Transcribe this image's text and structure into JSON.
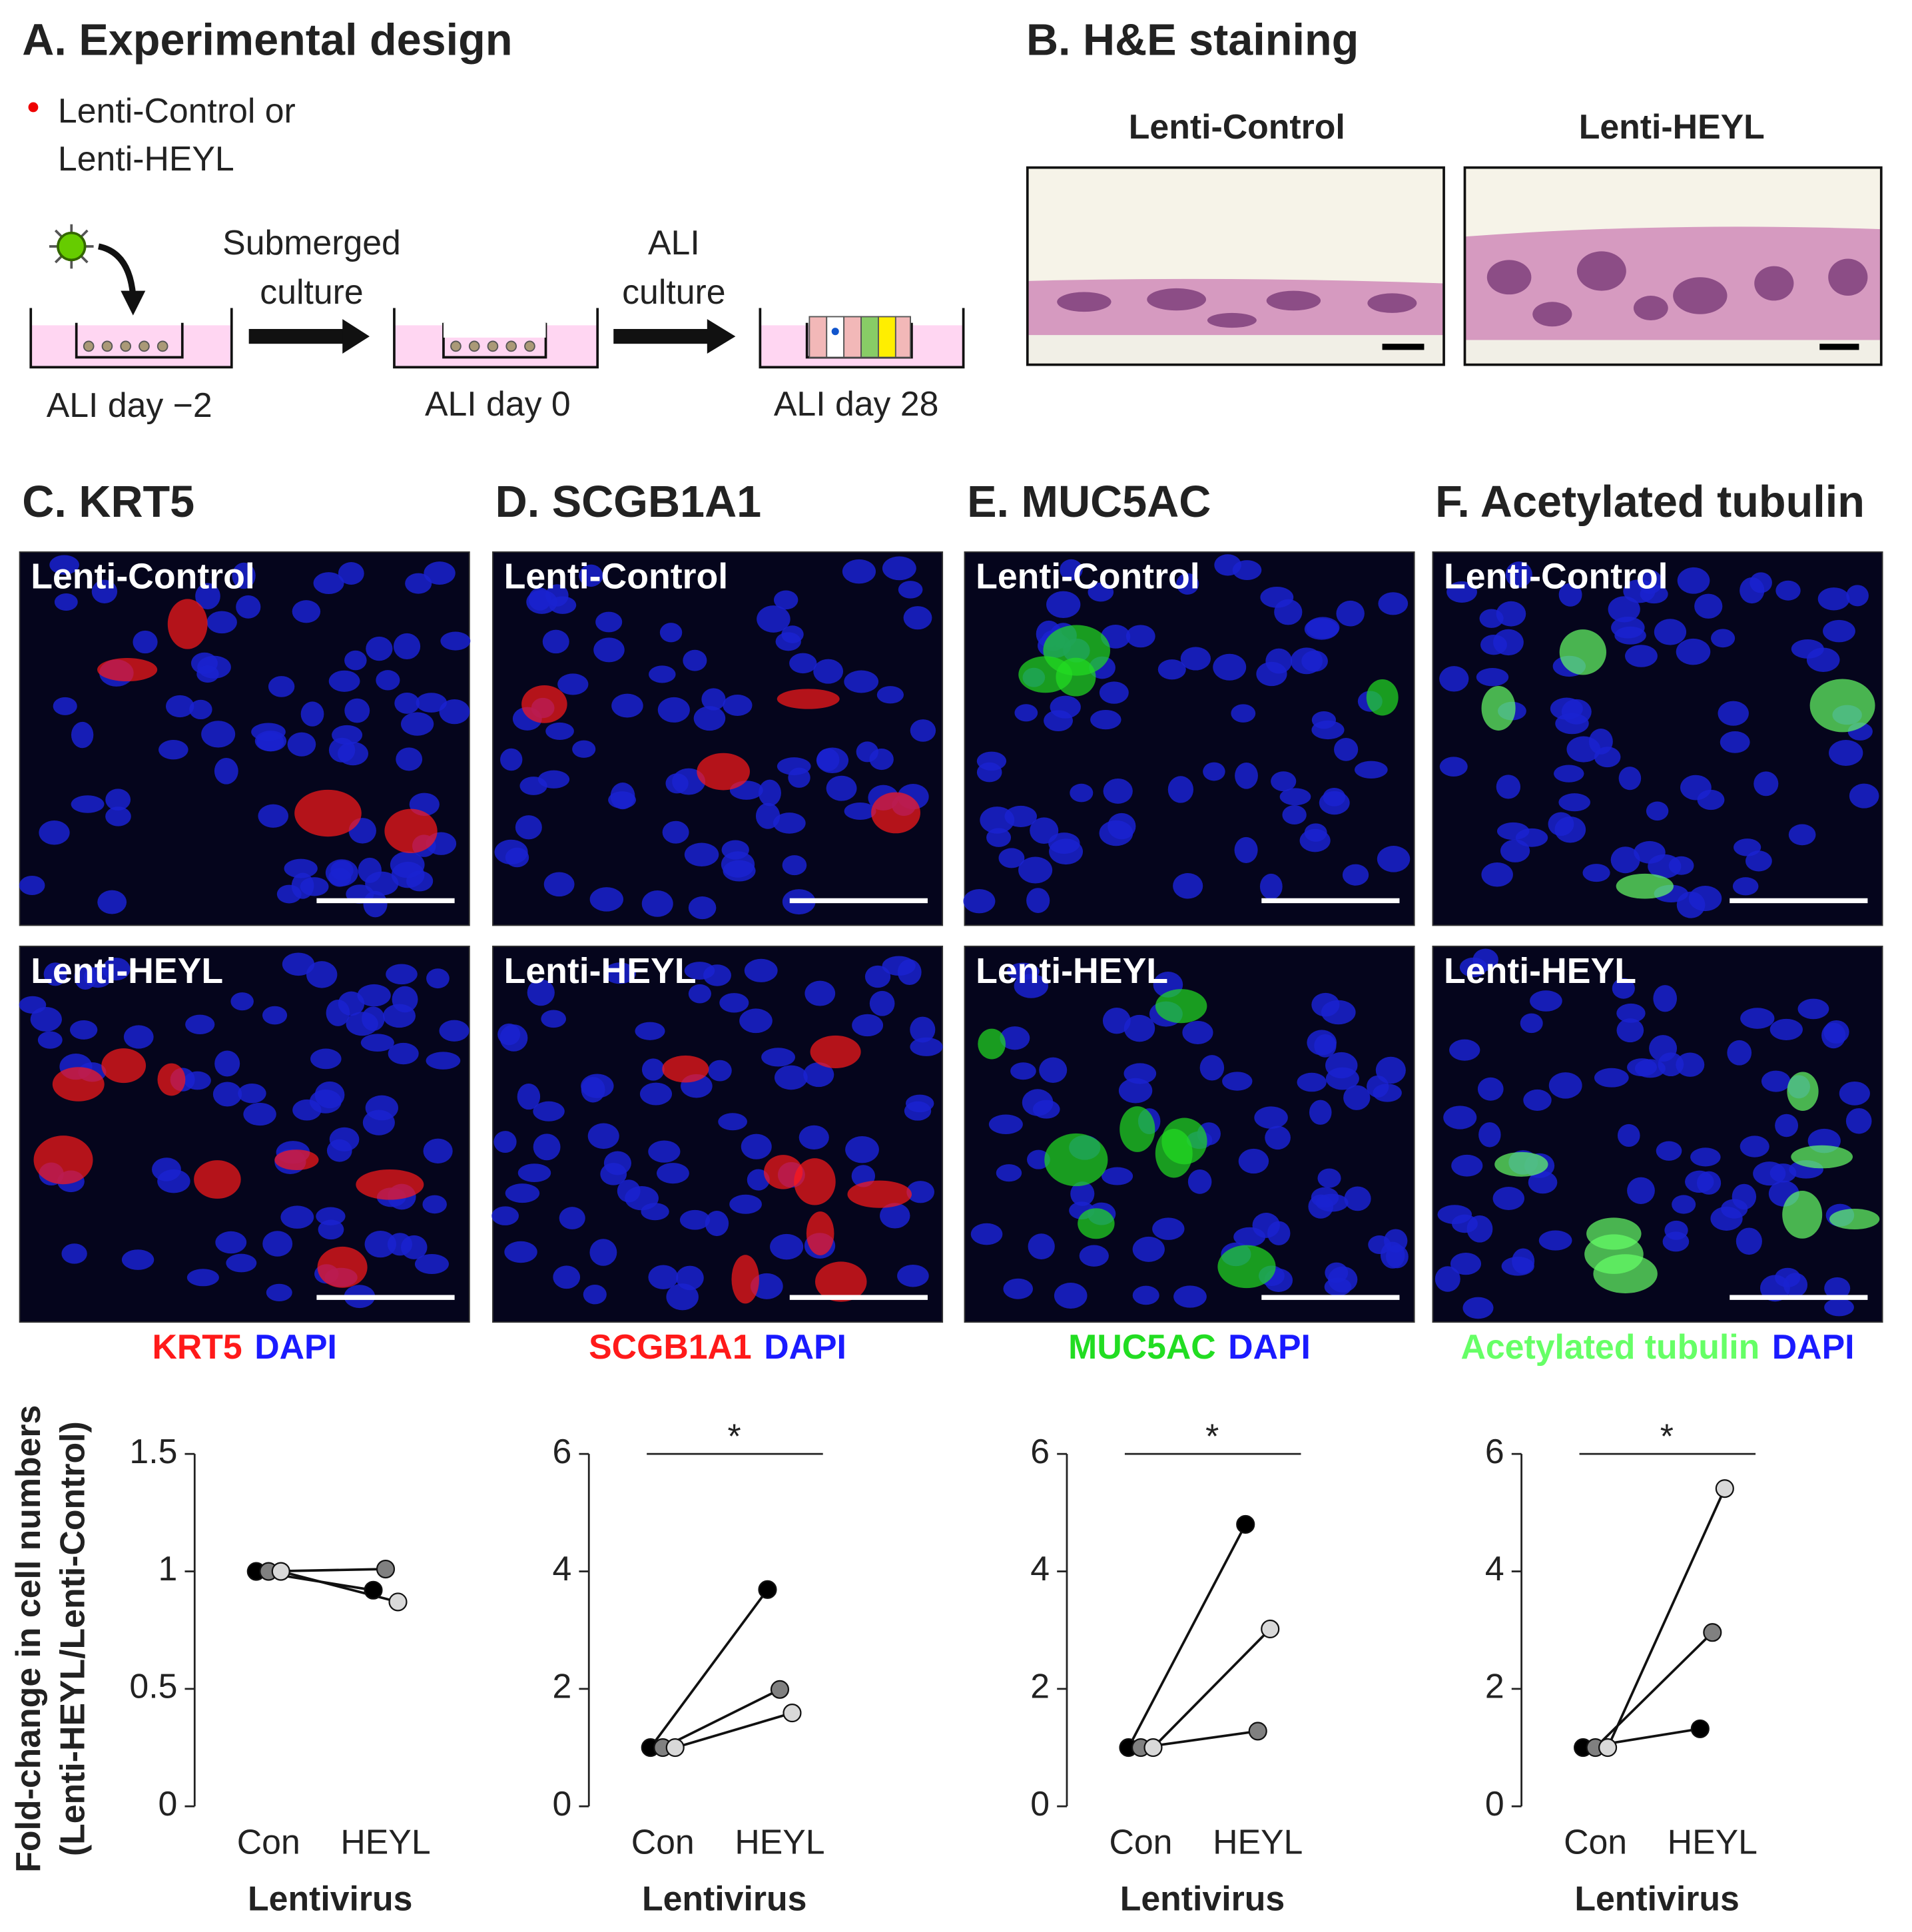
{
  "panel_a": {
    "title": "A. Experimental design",
    "legend": [
      "Lenti-Control or",
      "Lenti-HEYL"
    ],
    "steps": [
      [
        "Submerged",
        "culture"
      ],
      [
        "ALI",
        "culture"
      ]
    ],
    "days": [
      "ALI day −2",
      "ALI day 0",
      "ALI day 28"
    ]
  },
  "panel_b": {
    "title": "B. H&E staining",
    "labels": [
      "Lenti-Control",
      "Lenti-HEYL"
    ]
  },
  "image_panels": [
    {
      "title": "C. KRT5",
      "labels": [
        "Lenti-Control",
        "Lenti-HEYL"
      ],
      "stain": [
        {
          "text": "KRT5",
          "color": "#ff1a1a"
        },
        {
          "text": "DAPI",
          "color": "#1a1aff"
        }
      ]
    },
    {
      "title": "D. SCGB1A1",
      "labels": [
        "Lenti-Control",
        "Lenti-HEYL"
      ],
      "stain": [
        {
          "text": "SCGB1A1",
          "color": "#ff1a1a"
        },
        {
          "text": "DAPI",
          "color": "#1a1aff"
        }
      ]
    },
    {
      "title": "E. MUC5AC",
      "labels": [
        "Lenti-Control",
        "Lenti-HEYL"
      ],
      "stain": [
        {
          "text": "MUC5AC",
          "color": "#22dd22"
        },
        {
          "text": "DAPI",
          "color": "#1a1aff"
        }
      ]
    },
    {
      "title": "F. Acetylated tubulin",
      "labels": [
        "Lenti-Control",
        "Lenti-HEYL"
      ],
      "stain": [
        {
          "text": "Acetylated tubulin",
          "color": "#66ff66"
        },
        {
          "text": "DAPI",
          "color": "#1a1aff"
        }
      ]
    }
  ],
  "chart_data": [
    {
      "type": "line",
      "ylabel": [
        "Fold-change in cell numbers",
        "(Lenti-HEYL/Lenti-Control)"
      ],
      "xlabel": "Lentivirus",
      "categories": [
        "Con",
        "HEYL"
      ],
      "series": [
        {
          "color": "#000000",
          "values": [
            1,
            0.92
          ]
        },
        {
          "color": "#808080",
          "values": [
            1,
            1.01
          ]
        },
        {
          "color": "#d9d9d9",
          "values": [
            1,
            0.87
          ]
        }
      ],
      "ylim": [
        0,
        1.5
      ],
      "yticks": [
        0,
        0.5,
        1,
        1.5
      ]
    },
    {
      "type": "line",
      "xlabel": "Lentivirus",
      "categories": [
        "Con",
        "HEYL"
      ],
      "series": [
        {
          "color": "#000000",
          "values": [
            1,
            3.69
          ]
        },
        {
          "color": "#808080",
          "values": [
            1,
            1.99
          ]
        },
        {
          "color": "#d9d9d9",
          "values": [
            1,
            1.59
          ]
        }
      ],
      "ylim": [
        0,
        6
      ],
      "yticks": [
        0,
        2,
        4,
        6
      ],
      "significance": "*"
    },
    {
      "type": "line",
      "xlabel": "Lentivirus",
      "categories": [
        "Con",
        "HEYL"
      ],
      "series": [
        {
          "color": "#000000",
          "values": [
            1,
            4.8
          ]
        },
        {
          "color": "#808080",
          "values": [
            1,
            1.28
          ]
        },
        {
          "color": "#d9d9d9",
          "values": [
            1,
            3.02
          ]
        }
      ],
      "ylim": [
        0,
        6
      ],
      "yticks": [
        0,
        2,
        4,
        6
      ],
      "significance": "*"
    },
    {
      "type": "line",
      "xlabel": "Lentivirus",
      "categories": [
        "Con",
        "HEYL"
      ],
      "series": [
        {
          "color": "#000000",
          "values": [
            1,
            1.32
          ]
        },
        {
          "color": "#808080",
          "values": [
            1,
            2.96
          ]
        },
        {
          "color": "#d9d9d9",
          "values": [
            1,
            5.41
          ]
        }
      ],
      "ylim": [
        0,
        6
      ],
      "yticks": [
        0,
        2,
        4,
        6
      ],
      "significance": "*"
    }
  ]
}
